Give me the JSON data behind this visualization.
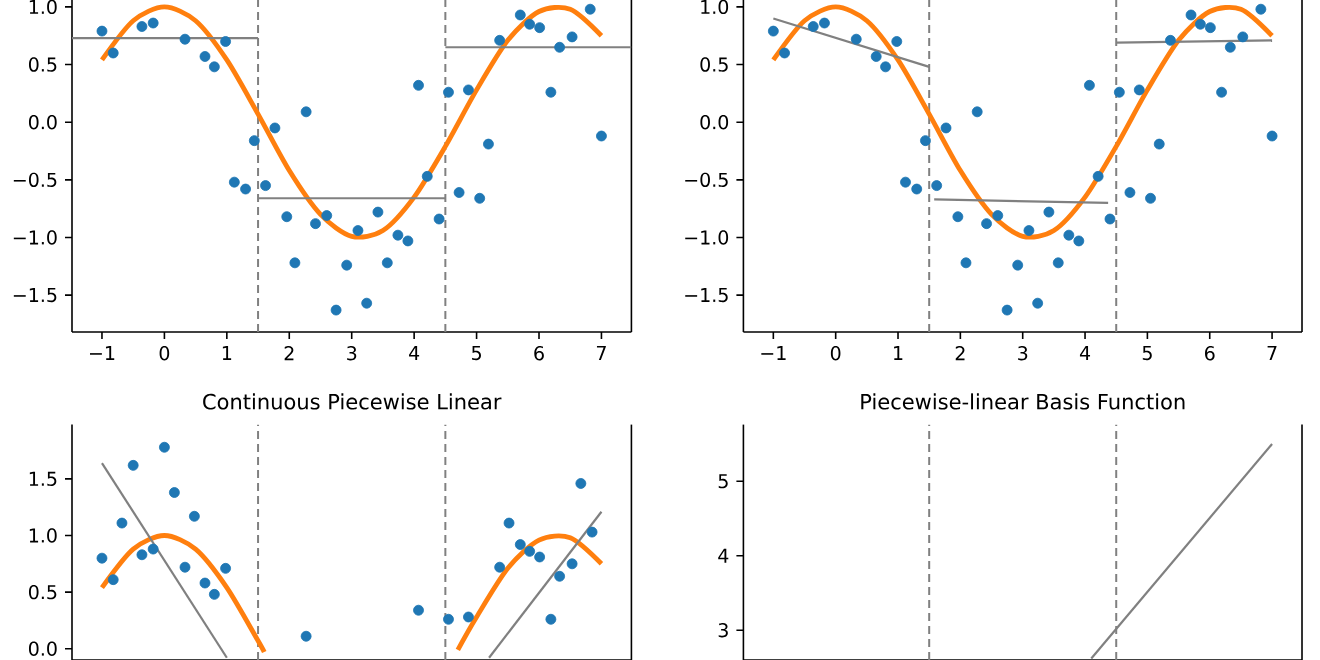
{
  "chart_data": [
    {
      "type": "scatter",
      "xlim": [
        -1.48,
        7.48
      ],
      "ylim": [
        -1.82,
        1.06
      ],
      "xticks": [
        {
          "value": -1,
          "label": "−1"
        },
        {
          "value": 0,
          "label": "0"
        },
        {
          "value": 1,
          "label": "1"
        },
        {
          "value": 2,
          "label": "2"
        },
        {
          "value": 3,
          "label": "3"
        },
        {
          "value": 4,
          "label": "4"
        },
        {
          "value": 5,
          "label": "5"
        },
        {
          "value": 6,
          "label": "6"
        },
        {
          "value": 7,
          "label": "7"
        }
      ],
      "yticks": [
        {
          "value": -1.5,
          "label": "−1.5"
        },
        {
          "value": -1,
          "label": "−1.0"
        },
        {
          "value": -0.5,
          "label": "−0.5"
        },
        {
          "value": 0,
          "label": "0.0"
        },
        {
          "value": 0.5,
          "label": "0.5"
        },
        {
          "value": 1,
          "label": "1.0"
        }
      ],
      "ref_lines": [
        {
          "axis": "x",
          "value": 1.5,
          "color": "#808080",
          "line_style": "dashed"
        },
        {
          "axis": "x",
          "value": 4.5,
          "color": "#808080",
          "line_style": "dashed"
        }
      ],
      "series": [
        {
          "type": "scatter",
          "marker": "circle",
          "color": "#1f77b4",
          "x": [
            -1.0,
            -0.82,
            -0.36,
            -0.18,
            0.33,
            0.65,
            0.8,
            0.98,
            1.12,
            1.3,
            1.44,
            1.62,
            1.77,
            1.96,
            2.09,
            2.27,
            2.42,
            2.6,
            2.75,
            2.92,
            3.1,
            3.24,
            3.42,
            3.57,
            3.74,
            3.9,
            4.07,
            4.21,
            4.4,
            4.55,
            4.72,
            4.87,
            5.05,
            5.19,
            5.37,
            5.7,
            5.85,
            6.01,
            6.19,
            6.33,
            6.53,
            6.82,
            7.0
          ],
          "values": [
            0.79,
            0.6,
            0.83,
            0.86,
            0.72,
            0.57,
            0.48,
            0.7,
            -0.52,
            -0.58,
            -0.16,
            -0.55,
            -0.05,
            -0.82,
            -1.22,
            0.09,
            -0.88,
            -0.81,
            -1.63,
            -1.24,
            -0.94,
            -1.57,
            -0.78,
            -1.22,
            -0.98,
            -1.03,
            0.32,
            -0.47,
            -0.84,
            0.26,
            -0.61,
            0.28,
            -0.66,
            -0.19,
            0.71,
            0.93,
            0.85,
            0.82,
            0.26,
            0.65,
            0.74,
            0.98,
            -0.12
          ]
        },
        {
          "type": "line",
          "color": "#ff7f0e",
          "x": [
            -1,
            -0.5,
            0,
            0.5,
            1,
            1.5,
            2,
            2.5,
            3,
            3.5,
            4,
            4.5,
            5,
            5.5,
            6,
            6.5,
            7
          ],
          "values": [
            0.54,
            0.88,
            1.0,
            0.88,
            0.54,
            0.07,
            -0.42,
            -0.8,
            -0.99,
            -0.94,
            -0.65,
            -0.21,
            0.28,
            0.71,
            0.96,
            0.98,
            0.75
          ]
        },
        {
          "type": "line",
          "color": "#808080",
          "x": [
            -1.48,
            1.5
          ],
          "values": [
            0.73,
            0.73
          ]
        },
        {
          "type": "line",
          "color": "#808080",
          "x": [
            1.5,
            4.5
          ],
          "values": [
            -0.66,
            -0.66
          ]
        },
        {
          "type": "line",
          "color": "#808080",
          "x": [
            4.5,
            7.48
          ],
          "values": [
            0.65,
            0.65
          ]
        }
      ]
    },
    {
      "type": "scatter",
      "xlim": [
        -1.48,
        7.48
      ],
      "ylim": [
        -1.82,
        1.06
      ],
      "xticks": [
        {
          "value": -1,
          "label": "−1"
        },
        {
          "value": 0,
          "label": "0"
        },
        {
          "value": 1,
          "label": "1"
        },
        {
          "value": 2,
          "label": "2"
        },
        {
          "value": 3,
          "label": "3"
        },
        {
          "value": 4,
          "label": "4"
        },
        {
          "value": 5,
          "label": "5"
        },
        {
          "value": 6,
          "label": "6"
        },
        {
          "value": 7,
          "label": "7"
        }
      ],
      "yticks": [
        {
          "value": -1.5,
          "label": "−1.5"
        },
        {
          "value": -1,
          "label": "−1.0"
        },
        {
          "value": -0.5,
          "label": "−0.5"
        },
        {
          "value": 0,
          "label": "0.0"
        },
        {
          "value": 0.5,
          "label": "0.5"
        },
        {
          "value": 1,
          "label": "1.0"
        }
      ],
      "ref_lines": [
        {
          "axis": "x",
          "value": 1.5,
          "color": "#808080",
          "line_style": "dashed"
        },
        {
          "axis": "x",
          "value": 4.5,
          "color": "#808080",
          "line_style": "dashed"
        }
      ],
      "series": [
        {
          "type": "scatter",
          "marker": "circle",
          "color": "#1f77b4",
          "x": [
            -1.0,
            -0.82,
            -0.36,
            -0.18,
            0.33,
            0.65,
            0.8,
            0.98,
            1.12,
            1.3,
            1.44,
            1.62,
            1.77,
            1.96,
            2.09,
            2.27,
            2.42,
            2.6,
            2.75,
            2.92,
            3.1,
            3.24,
            3.42,
            3.57,
            3.74,
            3.9,
            4.07,
            4.21,
            4.4,
            4.55,
            4.72,
            4.87,
            5.05,
            5.19,
            5.37,
            5.7,
            5.85,
            6.01,
            6.19,
            6.33,
            6.53,
            6.82,
            7.0
          ],
          "values": [
            0.79,
            0.6,
            0.83,
            0.86,
            0.72,
            0.57,
            0.48,
            0.7,
            -0.52,
            -0.58,
            -0.16,
            -0.55,
            -0.05,
            -0.82,
            -1.22,
            0.09,
            -0.88,
            -0.81,
            -1.63,
            -1.24,
            -0.94,
            -1.57,
            -0.78,
            -1.22,
            -0.98,
            -1.03,
            0.32,
            -0.47,
            -0.84,
            0.26,
            -0.61,
            0.28,
            -0.66,
            -0.19,
            0.71,
            0.93,
            0.85,
            0.82,
            0.26,
            0.65,
            0.74,
            0.98,
            -0.12
          ]
        },
        {
          "type": "line",
          "color": "#ff7f0e",
          "x": [
            -1,
            -0.5,
            0,
            0.5,
            1,
            1.5,
            2,
            2.5,
            3,
            3.5,
            4,
            4.5,
            5,
            5.5,
            6,
            6.5,
            7
          ],
          "values": [
            0.54,
            0.88,
            1.0,
            0.88,
            0.54,
            0.07,
            -0.42,
            -0.8,
            -0.99,
            -0.94,
            -0.65,
            -0.21,
            0.28,
            0.71,
            0.96,
            0.98,
            0.75
          ]
        },
        {
          "type": "line",
          "color": "#808080",
          "x": [
            -1.0,
            1.5
          ],
          "values": [
            0.9,
            0.48
          ]
        },
        {
          "type": "line",
          "color": "#808080",
          "x": [
            1.58,
            4.37
          ],
          "values": [
            -0.67,
            -0.7
          ]
        },
        {
          "type": "line",
          "color": "#808080",
          "x": [
            4.51,
            7.0
          ],
          "values": [
            0.69,
            0.71
          ]
        }
      ]
    },
    {
      "type": "scatter",
      "title": "Continuous Piecewise Linear",
      "tick_labels": "y",
      "xlim": [
        -1.48,
        7.48
      ],
      "ylim": [
        -0.1,
        1.98
      ],
      "yticks": [
        {
          "value": 0,
          "label": "0.0"
        },
        {
          "value": 0.5,
          "label": "0.5"
        },
        {
          "value": 1,
          "label": "1.0"
        },
        {
          "value": 1.5,
          "label": "1.5"
        }
      ],
      "ref_lines": [
        {
          "axis": "x",
          "value": 1.5,
          "color": "#808080",
          "line_style": "dashed"
        },
        {
          "axis": "x",
          "value": 4.5,
          "color": "#808080",
          "line_style": "dashed"
        }
      ],
      "series": [
        {
          "marker": "circle",
          "color": "#1f77b4",
          "x": [
            -1.0,
            -0.82,
            -0.68,
            -0.5,
            -0.36,
            -0.18,
            0.0,
            0.16,
            0.33,
            0.48,
            0.65,
            0.8,
            0.98,
            2.27,
            4.07,
            4.55,
            4.87,
            5.37,
            5.52,
            5.7,
            5.85,
            6.01,
            6.19,
            6.33,
            6.53,
            6.67,
            6.85
          ],
          "values": [
            0.8,
            0.61,
            1.11,
            1.62,
            0.83,
            0.88,
            1.78,
            1.38,
            0.72,
            1.17,
            0.58,
            0.48,
            0.71,
            0.11,
            0.34,
            0.26,
            0.28,
            0.72,
            1.11,
            0.92,
            0.86,
            0.81,
            0.26,
            0.64,
            0.75,
            1.46,
            1.03
          ]
        },
        {
          "type": "line",
          "color": "#ff7f0e",
          "x": [
            -1,
            -0.5,
            0,
            0.5,
            1,
            1.5,
            1.6,
            3,
            4.7,
            5,
            5.5,
            6,
            6.5,
            7
          ],
          "values": [
            0.54,
            0.88,
            1.0,
            0.88,
            0.54,
            0.07,
            -0.03,
            null,
            -0.01,
            0.28,
            0.71,
            0.96,
            0.98,
            0.75
          ]
        },
        {
          "type": "line",
          "color": "#808080",
          "x": [
            -1.0,
            1.0
          ],
          "values": [
            1.64,
            -0.08
          ]
        },
        {
          "type": "line",
          "color": "#808080",
          "x": [
            5.2,
            7.0
          ],
          "values": [
            -0.08,
            1.21
          ]
        }
      ]
    },
    {
      "type": "line",
      "title": "Piecewise-linear Basis Function",
      "tick_labels": "y",
      "xlim": [
        -1.48,
        7.48
      ],
      "ylim": [
        2.6,
        5.76
      ],
      "yticks": [
        3,
        4,
        5
      ],
      "ref_lines": [
        {
          "axis": "x",
          "value": 1.5,
          "color": "#808080",
          "line_style": "dashed"
        },
        {
          "axis": "x",
          "value": 4.5,
          "color": "#808080",
          "line_style": "dashed"
        }
      ],
      "series": [
        {
          "color": "#808080",
          "x": [
            4.1,
            7.0
          ],
          "values": [
            2.62,
            5.5
          ]
        }
      ]
    }
  ]
}
